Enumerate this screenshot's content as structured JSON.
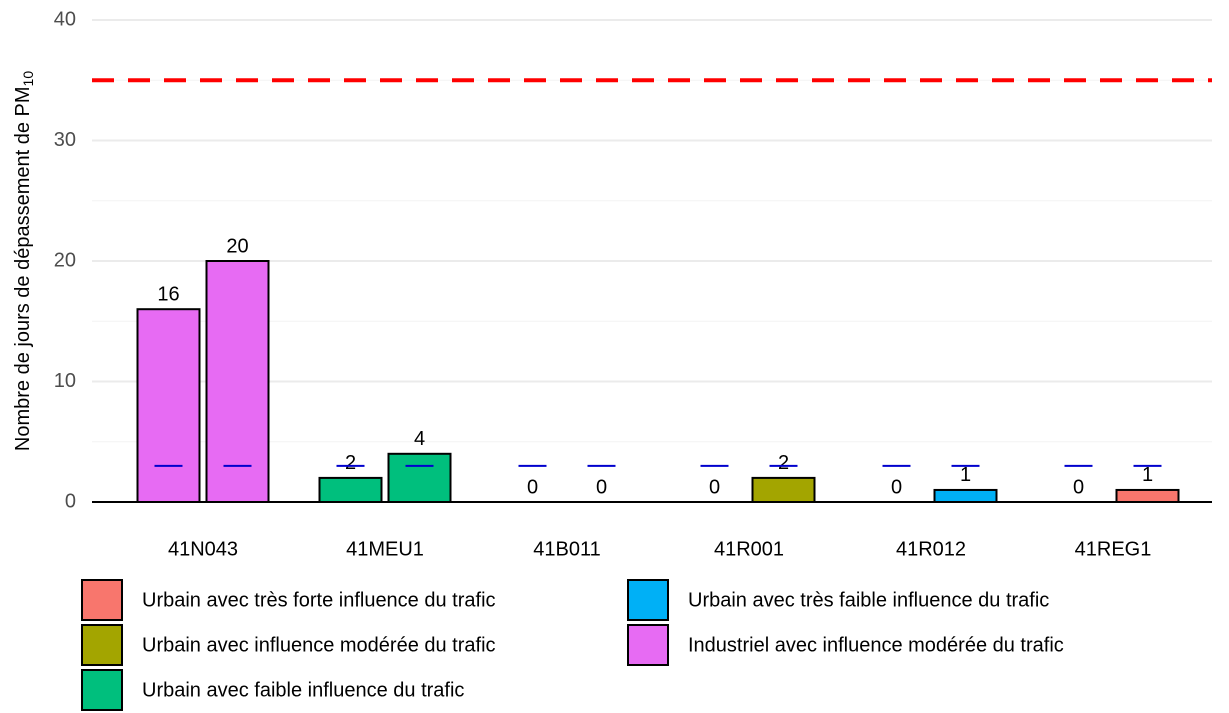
{
  "chart_data": {
    "type": "bar",
    "y_label": "Nombre de jours de dépassement de PM",
    "y_label_subscript": "10",
    "categories": [
      "41N043",
      "41MEU1",
      "41B011",
      "41R001",
      "41R012",
      "41REG1"
    ],
    "category_label_colors": [
      "#000000",
      "#ff0000",
      "#000000",
      "#000000",
      "#000000",
      "#ff0000"
    ],
    "category_colors": [
      "#e76bf3",
      "#00bf7d",
      null,
      "#a3a500",
      "#00b0f6",
      "#f8766d"
    ],
    "series": [
      {
        "values": [
          16,
          2,
          0,
          0,
          0,
          0
        ],
        "target": [
          3,
          3,
          3,
          3,
          3,
          3
        ]
      },
      {
        "values": [
          20,
          4,
          0,
          2,
          1,
          1
        ],
        "target": [
          3,
          3,
          3,
          3,
          3,
          3
        ]
      }
    ],
    "target_color": "#0000cd",
    "threshold": {
      "value": 35,
      "color": "#ff0000"
    },
    "ylim": [
      0,
      40
    ],
    "yticks": [
      0,
      10,
      20,
      30,
      40
    ],
    "minor_yticks": [
      5,
      15,
      25,
      35
    ],
    "grid": true,
    "legend": [
      {
        "label": "Urbain avec très forte influence du trafic",
        "color": "#f8766d"
      },
      {
        "label": "Urbain avec influence modérée du trafic",
        "color": "#a3a500"
      },
      {
        "label": "Urbain avec faible influence du trafic",
        "color": "#00bf7d"
      },
      {
        "label": "Urbain avec très faible influence du trafic",
        "color": "#00b0f6"
      },
      {
        "label": "Industriel avec influence modérée du trafic",
        "color": "#e76bf3"
      }
    ]
  }
}
